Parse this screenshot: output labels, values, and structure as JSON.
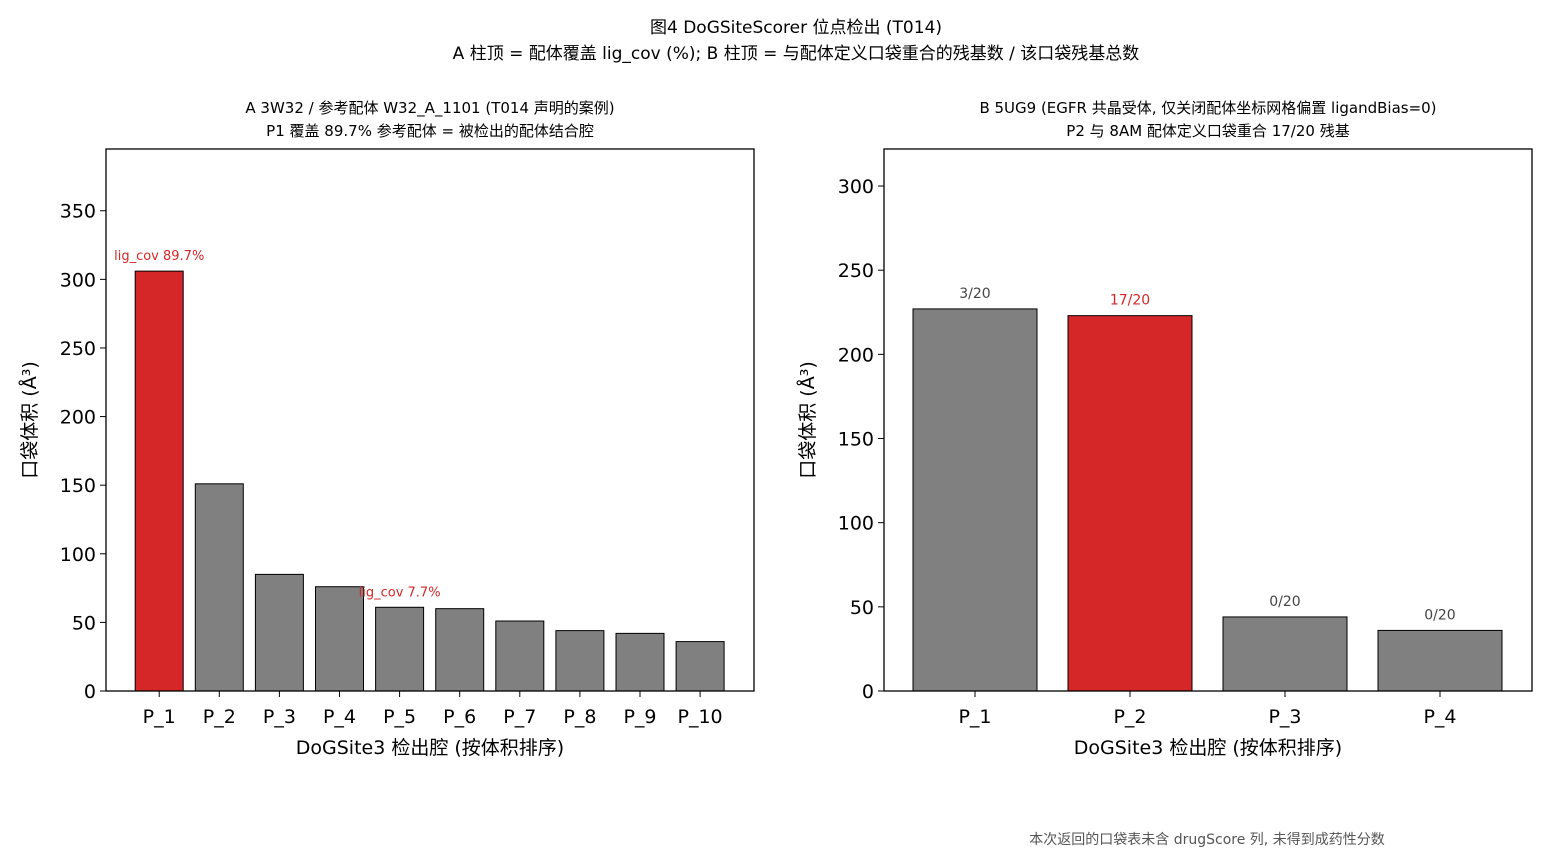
{
  "figure": {
    "suptitle_line1": "图4  DoGSiteScorer 位点检出 (T014)",
    "suptitle_line2": "A 柱顶 = 配体覆盖 lig_cov (%); B 柱顶 = 与配体定义口袋重合的残基数 / 该口袋残基总数",
    "footnote": "本次返回的口袋表未含 drugScore 列, 未得到成药性分数",
    "colors": {
      "highlight": "#d62728",
      "default": "#808080",
      "edge": "#000000",
      "label_default": "#444444"
    }
  },
  "chart_data": [
    {
      "type": "bar",
      "title_line1": "A  3W32 / 参考配体 W32_A_1101 (T014 声明的案例)",
      "title_line2": "P1 覆盖 89.7% 参考配体 = 被检出的配体结合腔",
      "xlabel": "DoGSite3 检出腔 (按体积排序)",
      "ylabel": "口袋体积 (Å³)",
      "ylim": [
        0,
        395
      ],
      "yticks": [
        0,
        50,
        100,
        150,
        200,
        250,
        300,
        350
      ],
      "categories": [
        "P_1",
        "P_2",
        "P_3",
        "P_4",
        "P_5",
        "P_6",
        "P_7",
        "P_8",
        "P_9",
        "P_10"
      ],
      "values": [
        306,
        151,
        85,
        76,
        61,
        60,
        51,
        44,
        42,
        36
      ],
      "highlight": [
        true,
        false,
        false,
        false,
        false,
        false,
        false,
        false,
        false,
        false
      ],
      "annotations": [
        {
          "index": 0,
          "text": "lig_cov 89.7%"
        },
        {
          "index": 4,
          "text": "lig_cov 7.7%"
        }
      ]
    },
    {
      "type": "bar",
      "title_line1": "B  5UG9 (EGFR 共晶受体, 仅关闭配体坐标网格偏置 ligandBias=0)",
      "title_line2": "P2 与 8AM 配体定义口袋重合 17/20 残基",
      "xlabel": "DoGSite3 检出腔 (按体积排序)",
      "ylabel": "口袋体积 (Å³)",
      "ylim": [
        0,
        322
      ],
      "yticks": [
        0,
        50,
        100,
        150,
        200,
        250,
        300
      ],
      "categories": [
        "P_1",
        "P_2",
        "P_3",
        "P_4"
      ],
      "values": [
        227,
        223,
        44,
        36
      ],
      "highlight": [
        false,
        true,
        false,
        false
      ],
      "annotations": [
        {
          "index": 0,
          "text": "3/20"
        },
        {
          "index": 1,
          "text": "17/20"
        },
        {
          "index": 2,
          "text": "0/20"
        },
        {
          "index": 3,
          "text": "0/20"
        }
      ]
    }
  ]
}
